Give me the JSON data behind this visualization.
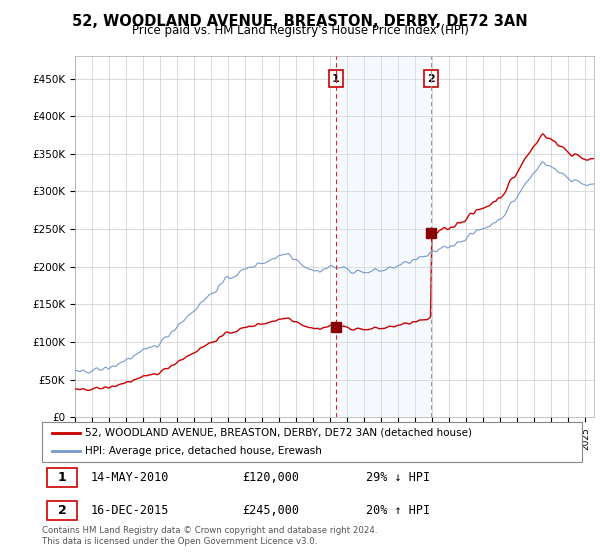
{
  "title": "52, WOODLAND AVENUE, BREASTON, DERBY, DE72 3AN",
  "subtitle": "Price paid vs. HM Land Registry's House Price Index (HPI)",
  "sale1_label": "14-MAY-2010",
  "sale1_price": 120000,
  "sale1_hpi_note": "29% ↓ HPI",
  "sale2_label": "16-DEC-2015",
  "sale2_price": 245000,
  "sale2_hpi_note": "20% ↑ HPI",
  "legend1": "52, WOODLAND AVENUE, BREASTON, DERBY, DE72 3AN (detached house)",
  "legend2": "HPI: Average price, detached house, Erewash",
  "footer": "Contains HM Land Registry data © Crown copyright and database right 2024.\nThis data is licensed under the Open Government Licence v3.0.",
  "price_line_color": "#cc0000",
  "hpi_line_color": "#7799cc",
  "hpi_fill_color": "#ddeeff",
  "vline1_color": "#dd2222",
  "vline2_color": "#aaaacc",
  "dot_color": "#880000",
  "ylim_max": 480000,
  "ylim_min": 0
}
